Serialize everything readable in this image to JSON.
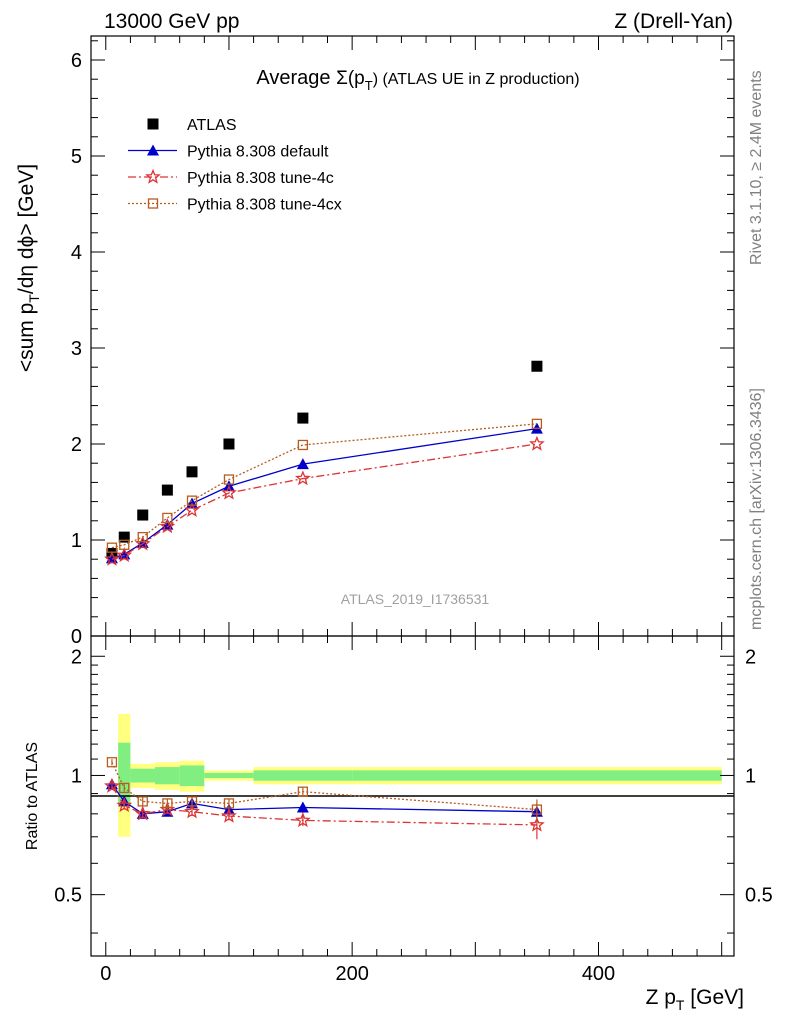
{
  "header": {
    "left": "13000 GeV pp",
    "right": "Z (Drell-Yan)"
  },
  "side_labels": {
    "rivet": "Rivet 3.1.10, ≥ 2.4M events",
    "mcplots": "mcplots.cern.ch [arXiv:1306.3436]"
  },
  "chart_data": [
    {
      "type": "scatter",
      "title_pre": "Average ",
      "title_sym": "Σ(p",
      "title_sub": "T",
      "title_post": ") (ATLAS UE in Z production)",
      "ylabel_parts": [
        "<sum p",
        "T",
        "/dη dϕ> [GeV]"
      ],
      "ylim": [
        0,
        6.25
      ],
      "xlim": [
        -12,
        510
      ],
      "yticks": [
        0,
        1,
        2,
        3,
        4,
        5,
        6
      ],
      "watermark": "ATLAS_2019_I1736531",
      "legend_placement": "top-left",
      "series": [
        {
          "name": "ATLAS",
          "color": "#000000",
          "marker": "square-filled",
          "line": "none",
          "x": [
            5,
            15,
            30,
            50,
            70,
            100,
            160,
            350
          ],
          "y": [
            0.86,
            1.03,
            1.26,
            1.52,
            1.71,
            2.0,
            2.27,
            2.81
          ]
        },
        {
          "name": "Pythia 8.308 default",
          "color": "#0000cc",
          "marker": "triangle-filled",
          "line": "solid",
          "x": [
            5,
            15,
            30,
            50,
            70,
            100,
            160,
            350
          ],
          "y": [
            0.81,
            0.85,
            0.97,
            1.16,
            1.38,
            1.56,
            1.79,
            2.16
          ]
        },
        {
          "name": "Pythia 8.308 tune-4c",
          "color": "#dd3333",
          "marker": "star",
          "line": "dashdot",
          "x": [
            5,
            15,
            30,
            50,
            70,
            100,
            160,
            350
          ],
          "y": [
            0.8,
            0.84,
            0.96,
            1.14,
            1.31,
            1.49,
            1.64,
            2.0
          ]
        },
        {
          "name": "Pythia 8.308 tune-4cx",
          "color": "#b85c1e",
          "marker": "square-open",
          "line": "dotted",
          "x": [
            5,
            15,
            30,
            50,
            70,
            100,
            160,
            350
          ],
          "y": [
            0.92,
            0.95,
            1.03,
            1.23,
            1.41,
            1.63,
            1.99,
            2.21
          ]
        }
      ]
    },
    {
      "type": "scatter",
      "ylabel": "Ratio to ATLAS",
      "xlabel_pre": "Z p",
      "xlabel_sub": "T",
      "xlabel_post": " [GeV]",
      "ylim": [
        0.35,
        2.25
      ],
      "xlim": [
        -12,
        510
      ],
      "yticks": [
        0.5,
        1,
        2
      ],
      "ytick_labels": [
        "0.5",
        "1",
        "2"
      ],
      "xticks": [
        0,
        200,
        400
      ],
      "xtick_labels": [
        "0",
        "200",
        "400"
      ],
      "bands": [
        {
          "x0": 10,
          "x1": 20,
          "yellow": [
            0.7,
            1.43
          ],
          "green": [
            0.85,
            1.21
          ]
        },
        {
          "x0": 20,
          "x1": 40,
          "yellow": [
            0.93,
            1.07
          ],
          "green": [
            0.96,
            1.04
          ]
        },
        {
          "x0": 40,
          "x1": 60,
          "yellow": [
            0.92,
            1.08
          ],
          "green": [
            0.95,
            1.05
          ]
        },
        {
          "x0": 60,
          "x1": 80,
          "yellow": [
            0.91,
            1.09
          ],
          "green": [
            0.94,
            1.06
          ]
        },
        {
          "x0": 80,
          "x1": 120,
          "yellow": [
            0.97,
            1.03
          ],
          "green": [
            0.985,
            1.015
          ]
        },
        {
          "x0": 120,
          "x1": 200,
          "yellow": [
            0.95,
            1.05
          ],
          "green": [
            0.97,
            1.03
          ]
        },
        {
          "x0": 200,
          "x1": 500,
          "yellow": [
            0.95,
            1.05
          ],
          "green": [
            0.97,
            1.03
          ]
        }
      ],
      "series": [
        {
          "name": "Pythia 8.308 default",
          "color": "#0000cc",
          "marker": "triangle-filled",
          "line": "solid",
          "x": [
            5,
            15,
            30,
            50,
            70,
            100,
            160,
            350
          ],
          "y": [
            0.95,
            0.86,
            0.8,
            0.81,
            0.85,
            0.82,
            0.83,
            0.81
          ],
          "err": [
            0.02,
            0.02,
            0.02,
            0.02,
            0.02,
            0.02,
            0.025,
            0.04
          ]
        },
        {
          "name": "Pythia 8.308 tune-4c",
          "color": "#dd3333",
          "marker": "star",
          "line": "dashdot",
          "x": [
            5,
            15,
            30,
            50,
            70,
            100,
            160,
            350
          ],
          "y": [
            0.94,
            0.84,
            0.8,
            0.82,
            0.81,
            0.79,
            0.77,
            0.75
          ],
          "err": [
            0.02,
            0.02,
            0.02,
            0.02,
            0.02,
            0.02,
            0.025,
            0.06
          ]
        },
        {
          "name": "Pythia 8.308 tune-4cx",
          "color": "#b85c1e",
          "marker": "square-open",
          "line": "dotted",
          "x": [
            5,
            15,
            30,
            50,
            70,
            100,
            160,
            350
          ],
          "y": [
            1.08,
            0.93,
            0.86,
            0.85,
            0.86,
            0.85,
            0.91,
            0.82
          ],
          "err": [
            0.02,
            0.02,
            0.02,
            0.02,
            0.02,
            0.02,
            0.025,
            0.05
          ]
        }
      ]
    }
  ]
}
